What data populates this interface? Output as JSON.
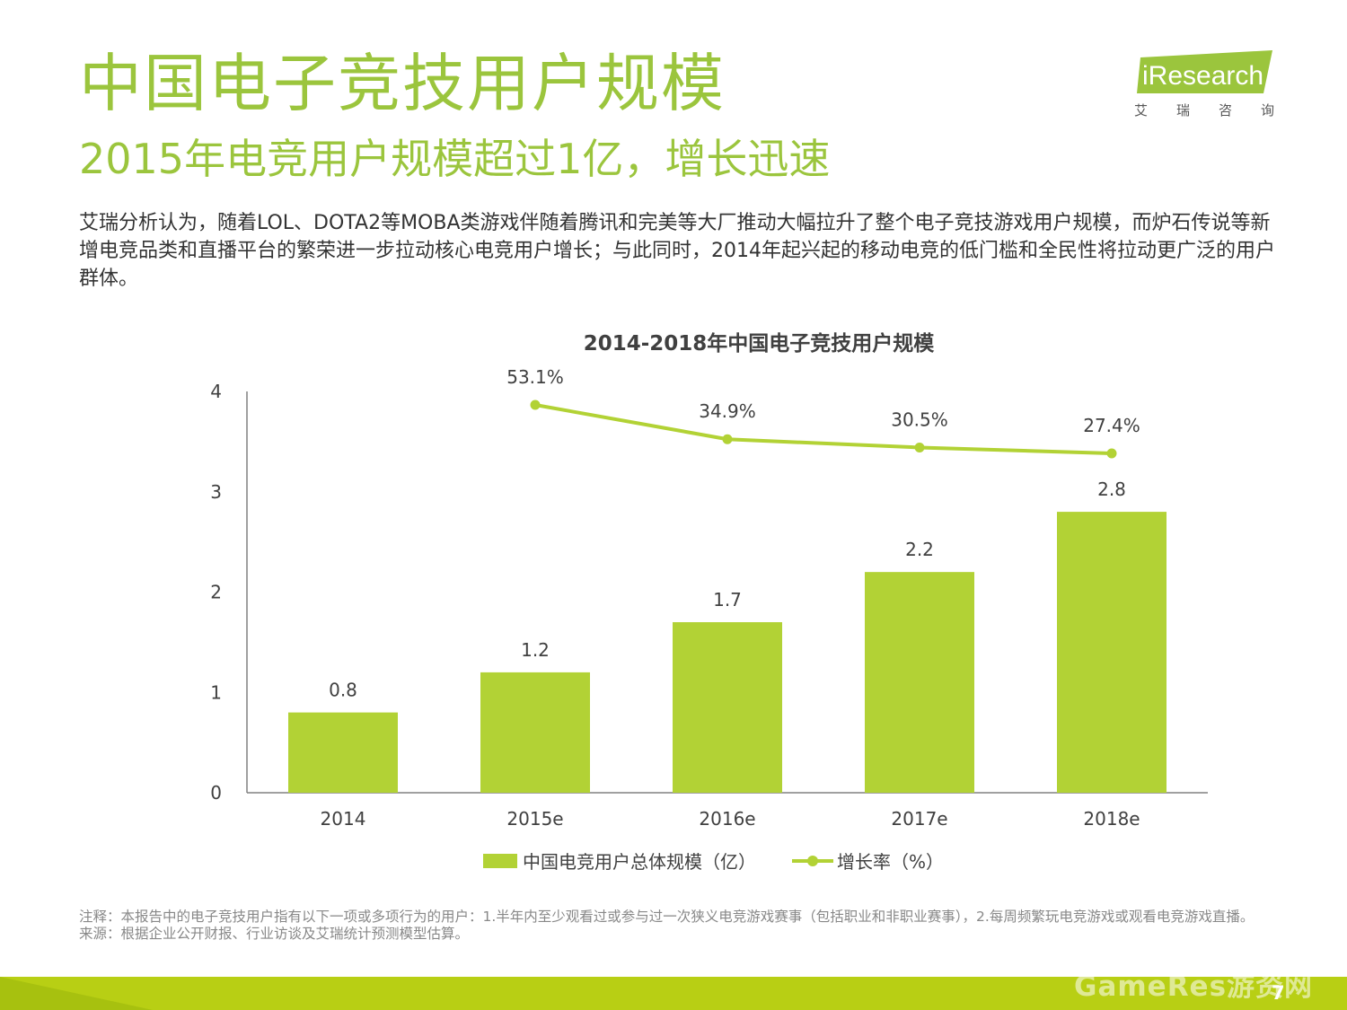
{
  "header": {
    "title": "中国电子竞技用户规模",
    "subtitle": "2015年电竞用户规模超过1亿，增长迅速",
    "body": "艾瑞分析认为，随着LOL、DOTA2等MOBA类游戏伴随着腾讯和完美等大厂推动大幅拉升了整个电子竞技游戏用户规模，而炉石传说等新增电竞品类和直播平台的繁荣进一步拉动核心电竞用户增长；与此同时，2014年起兴起的移动电竞的低门槛和全民性将拉动更广泛的用户群体。"
  },
  "logo": {
    "text": "iResearch",
    "cn": [
      "艾",
      "瑞",
      "咨",
      "询"
    ],
    "color": "#9bc53d"
  },
  "chart_data": {
    "type": "bar",
    "title": "2014-2018年中国电子竞技用户规模",
    "categories": [
      "2014",
      "2015e",
      "2016e",
      "2017e",
      "2018e"
    ],
    "yticks": [
      "0",
      "1",
      "2",
      "3",
      "4"
    ],
    "ylim": [
      0,
      4
    ],
    "series": [
      {
        "name": "中国电竞用户总体规模（亿）",
        "type": "bar",
        "values": [
          0.8,
          1.2,
          1.7,
          2.2,
          2.8
        ],
        "labels": [
          "0.8",
          "1.2",
          "1.7",
          "2.2",
          "2.8"
        ],
        "color": "#b2d235"
      },
      {
        "name": "增长率（%）",
        "type": "line",
        "values": [
          null,
          53.1,
          34.9,
          30.5,
          27.4
        ],
        "labels": [
          "",
          "53.1%",
          "34.9%",
          "30.5%",
          "27.4%"
        ],
        "color": "#b2d235"
      }
    ],
    "legend_position": "bottom"
  },
  "notes": {
    "note": "注释：本报告中的电子竞技用户指有以下一项或多项行为的用户：1.半年内至少观看过或参与过一次狭义电竞游戏赛事（包括职业和非职业赛事），2.每周频繁玩电竞游戏或观看电竞游戏直播。",
    "source": "来源：根据企业公开财报、行业访谈及艾瑞统计预测模型估算。"
  },
  "footer": {
    "watermark": "GameRes游资网",
    "page": "7",
    "color": "#b8cf14"
  }
}
